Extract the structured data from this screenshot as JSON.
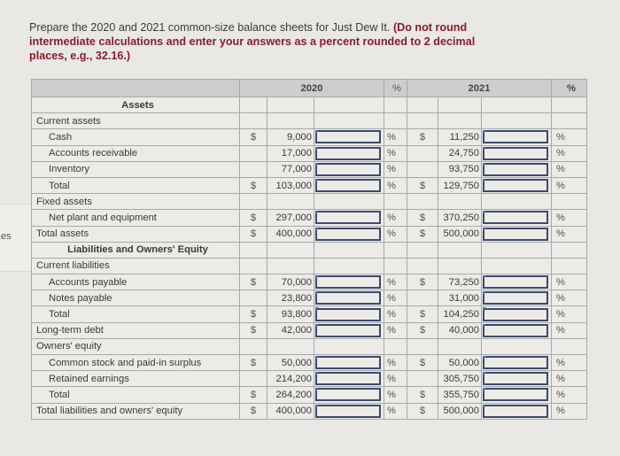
{
  "side_tab": {
    "fragment": "es"
  },
  "prompt": {
    "text": "Prepare the 2020 and 2021 common-size balance sheets for Just Dew It. ",
    "note": "(Do not round intermediate calculations and enter your answers as a percent rounded to 2 decimal places, e.g., 32.16.)"
  },
  "table": {
    "headers": {
      "year1": "2020",
      "pct1": "%",
      "year2": "2021",
      "pct2": "%"
    },
    "pct_symbol": "%",
    "rows": [
      {
        "label": "Assets",
        "type": "section"
      },
      {
        "label": "Current assets",
        "type": "group"
      },
      {
        "label": "Cash",
        "type": "item",
        "d1": "$",
        "v1": "9,000",
        "d2": "$",
        "v2": "11,250"
      },
      {
        "label": "Accounts receivable",
        "type": "item",
        "d1": "",
        "v1": "17,000",
        "d2": "",
        "v2": "24,750"
      },
      {
        "label": "Inventory",
        "type": "item",
        "d1": "",
        "v1": "77,000",
        "d2": "",
        "v2": "93,750"
      },
      {
        "label": "Total",
        "type": "item",
        "d1": "$",
        "v1": "103,000",
        "d2": "$",
        "v2": "129,750"
      },
      {
        "label": "Fixed assets",
        "type": "group"
      },
      {
        "label": "Net plant and equipment",
        "type": "item",
        "d1": "$",
        "v1": "297,000",
        "d2": "$",
        "v2": "370,250"
      },
      {
        "label": "Total assets",
        "type": "item0",
        "d1": "$",
        "v1": "400,000",
        "d2": "$",
        "v2": "500,000"
      },
      {
        "label": "Liabilities and Owners' Equity",
        "type": "section"
      },
      {
        "label": "Current liabilities",
        "type": "group"
      },
      {
        "label": "Accounts payable",
        "type": "item",
        "d1": "$",
        "v1": "70,000",
        "d2": "$",
        "v2": "73,250"
      },
      {
        "label": "Notes payable",
        "type": "item",
        "d1": "",
        "v1": "23,800",
        "d2": "",
        "v2": "31,000"
      },
      {
        "label": "Total",
        "type": "item",
        "d1": "$",
        "v1": "93,800",
        "d2": "$",
        "v2": "104,250"
      },
      {
        "label": "Long-term debt",
        "type": "item0",
        "d1": "$",
        "v1": "42,000",
        "d2": "$",
        "v2": "40,000"
      },
      {
        "label": "Owners' equity",
        "type": "group"
      },
      {
        "label": "Common stock and paid-in surplus",
        "type": "item",
        "d1": "$",
        "v1": "50,000",
        "d2": "$",
        "v2": "50,000"
      },
      {
        "label": "Retained earnings",
        "type": "item",
        "d1": "",
        "v1": "214,200",
        "d2": "",
        "v2": "305,750"
      },
      {
        "label": "Total",
        "type": "item",
        "d1": "$",
        "v1": "264,200",
        "d2": "$",
        "v2": "355,750"
      },
      {
        "label": "Total liabilities and owners' equity",
        "type": "item0",
        "d1": "$",
        "v1": "400,000",
        "d2": "$",
        "v2": "500,000"
      }
    ]
  }
}
